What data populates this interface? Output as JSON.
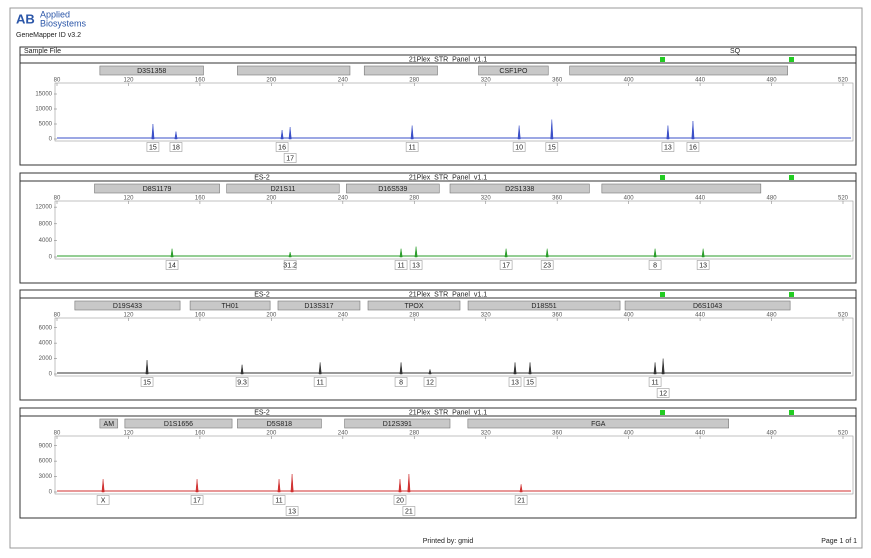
{
  "header": {
    "logo": "AB",
    "brand_line1": "Applied",
    "brand_line2": "Biosystems",
    "app": "GeneMapper ID v3.2"
  },
  "sample_table": {
    "col1": "Sample File",
    "panel": "21Plex_STR_Panel_v1.1",
    "col3": "SQ"
  },
  "footer": {
    "printed_by": "Printed by: gmid",
    "page": "Page 1 of 1"
  },
  "chart_data": [
    {
      "type": "line",
      "sample": null,
      "panel": "21Plex_STR_Panel_v1.1",
      "color": "#3a4fc8",
      "xlim": [
        80,
        520
      ],
      "xticks": [
        80,
        120,
        160,
        200,
        240,
        280,
        320,
        360,
        400,
        440,
        480,
        520
      ],
      "ylim": [
        0,
        18000
      ],
      "yticks": [
        0,
        5000,
        10000,
        15000
      ],
      "markers": [
        {
          "name": "D3S1358",
          "start": 104,
          "end": 162
        },
        {
          "name": null,
          "start": 181,
          "end": 244
        },
        {
          "name": null,
          "start": 252,
          "end": 293
        },
        {
          "name": "CSF1PO",
          "start": 316,
          "end": 355
        },
        {
          "name": null,
          "start": 367,
          "end": 489
        }
      ],
      "x": [
        133.7,
        146.6,
        206,
        210.5,
        278.8,
        338.7,
        357,
        422,
        436
      ],
      "values": [
        5000,
        2500,
        3000,
        4000,
        4500,
        4500,
        6500,
        4500,
        6000
      ],
      "alleles": [
        "15",
        "18",
        "16",
        "17",
        "11",
        "10",
        "15",
        "13",
        "16"
      ]
    },
    {
      "type": "line",
      "sample": "ES-2",
      "panel": "21Plex_STR_Panel_v1.1",
      "color": "#2a9d2a",
      "xlim": [
        80,
        520
      ],
      "xticks": [
        80,
        120,
        160,
        200,
        240,
        280,
        320,
        360,
        400,
        440,
        480,
        520
      ],
      "ylim": [
        0,
        13000
      ],
      "yticks": [
        0,
        4000,
        8000,
        12000
      ],
      "markers": [
        {
          "name": "D8S1179",
          "start": 101,
          "end": 171
        },
        {
          "name": "D21S11",
          "start": 175,
          "end": 238
        },
        {
          "name": "D16S539",
          "start": 242,
          "end": 294
        },
        {
          "name": "D2S1338",
          "start": 300,
          "end": 378
        },
        {
          "name": null,
          "start": 385,
          "end": 474
        }
      ],
      "x": [
        144.4,
        210.5,
        272.6,
        281,
        331.4,
        354.4,
        414.8,
        441.7
      ],
      "values": [
        2000,
        1200,
        2000,
        2500,
        2000,
        2000,
        2000,
        2000
      ],
      "alleles": [
        "14",
        "31.2",
        "11",
        "13",
        "17",
        "23",
        "8",
        "13"
      ]
    },
    {
      "type": "line",
      "sample": "ES-2",
      "panel": "21Plex_STR_Panel_v1.1",
      "color": "#333333",
      "xlim": [
        80,
        520
      ],
      "xticks": [
        80,
        120,
        160,
        200,
        240,
        280,
        320,
        360,
        400,
        440,
        480,
        520
      ],
      "ylim": [
        0,
        7000
      ],
      "yticks": [
        0,
        2000,
        4000,
        6000
      ],
      "markers": [
        {
          "name": "D19S433",
          "start": 90,
          "end": 148.9
        },
        {
          "name": "TH01",
          "start": 154.5,
          "end": 199.3
        },
        {
          "name": "D13S317",
          "start": 203.7,
          "end": 249.6
        },
        {
          "name": "TPOX",
          "start": 254.1,
          "end": 305.6
        },
        {
          "name": "D18S51",
          "start": 310.1,
          "end": 395.2
        },
        {
          "name": "D6S1043",
          "start": 398,
          "end": 490.4
        }
      ],
      "x": [
        130.4,
        183.6,
        227.3,
        272.6,
        288.8,
        336.4,
        344.8,
        414.8,
        419.3
      ],
      "values": [
        1800,
        1200,
        1500,
        1500,
        600,
        1500,
        1500,
        1500,
        2000
      ],
      "alleles": [
        "15",
        "9.3",
        "11",
        "8",
        "12",
        "13",
        "15",
        "11",
        "12"
      ]
    },
    {
      "type": "line",
      "sample": "ES-2",
      "panel": "21Plex_STR_Panel_v1.1",
      "color": "#d03030",
      "xlim": [
        80,
        520
      ],
      "xticks": [
        80,
        120,
        160,
        200,
        240,
        280,
        320,
        360,
        400,
        440,
        480,
        520
      ],
      "ylim": [
        0,
        10500
      ],
      "yticks": [
        0,
        3000,
        6000,
        9000
      ],
      "markers": [
        {
          "name": "AM",
          "start": 104,
          "end": 114
        },
        {
          "name": "D1S1656",
          "start": 118,
          "end": 178
        },
        {
          "name": "D5S818",
          "start": 181,
          "end": 228
        },
        {
          "name": "D12S391",
          "start": 241,
          "end": 300
        },
        {
          "name": "FGA",
          "start": 310,
          "end": 456
        }
      ],
      "x": [
        105.8,
        158.4,
        204.3,
        211.6,
        272,
        277,
        339.8
      ],
      "values": [
        2500,
        2500,
        2500,
        3500,
        2500,
        3500,
        1500
      ],
      "alleles": [
        "X",
        "17",
        "11",
        "13",
        "20",
        "21",
        "21"
      ]
    }
  ]
}
